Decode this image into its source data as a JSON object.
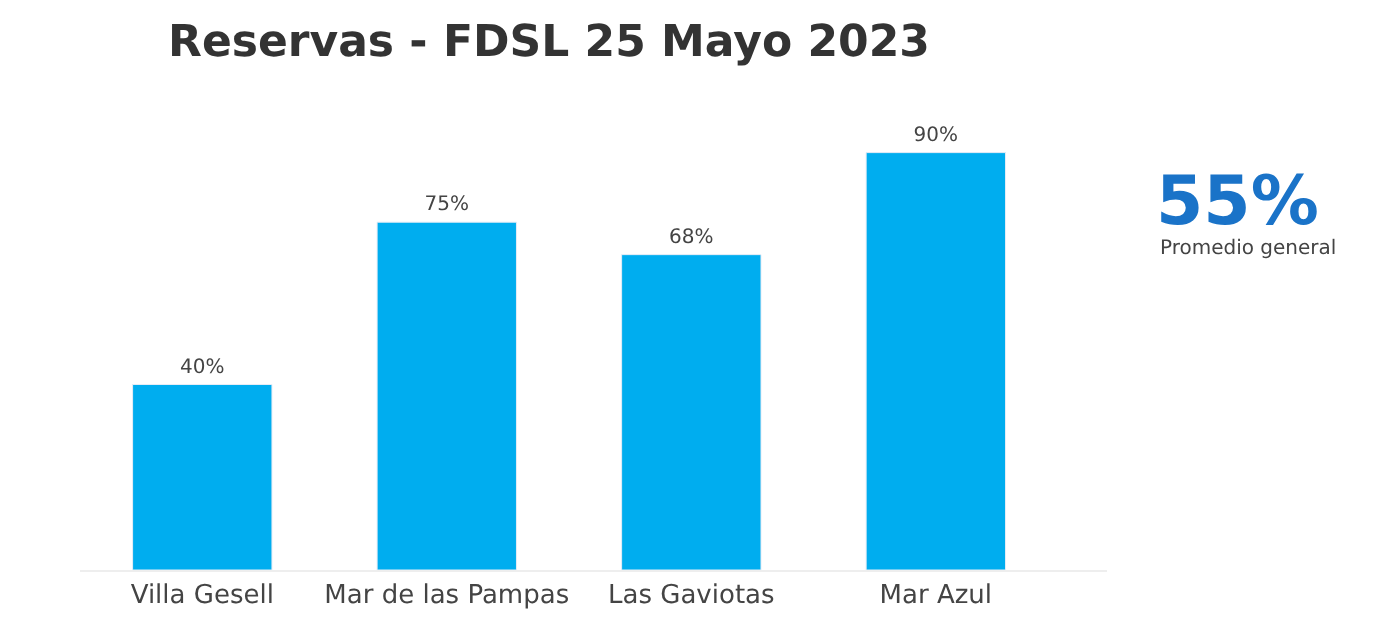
{
  "chart_data": {
    "type": "bar",
    "title": "Reservas - FDSL 25 Mayo 2023",
    "categories": [
      "Villa Gesell",
      "Mar de las Pampas",
      "Las Gaviotas",
      "Mar Azul"
    ],
    "values": [
      40,
      75,
      68,
      90
    ],
    "value_labels": [
      "40%",
      "75%",
      "68%",
      "90%"
    ],
    "color": "#00adef",
    "annotations": [
      "55%",
      "Promedio general"
    ],
    "legend": false
  }
}
